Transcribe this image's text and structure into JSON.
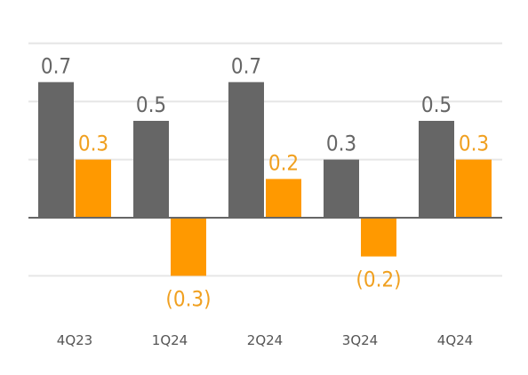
{
  "chart_data": {
    "type": "bar",
    "categories": [
      "4Q23",
      "1Q24",
      "2Q24",
      "3Q24",
      "4Q24"
    ],
    "series": [
      {
        "values": [
          0.7,
          0.5,
          0.7,
          0.3,
          0.5
        ],
        "labels": [
          "0.7",
          "0.5",
          "0.7",
          "0.3",
          "0.5"
        ],
        "color": "#666666",
        "label_color": "#666666"
      },
      {
        "values": [
          0.3,
          -0.3,
          0.2,
          -0.2,
          0.3
        ],
        "labels": [
          "0.3",
          "(0.3)",
          "0.2",
          "(0.2)",
          "0.3"
        ],
        "color": "#FF9900",
        "label_color": "#F0A020"
      }
    ],
    "title": "",
    "xlabel": "",
    "ylabel": "",
    "ylim": [
      -0.4,
      0.8
    ],
    "grid": true,
    "zero_line_color": "#666666",
    "grid_color": "#e6e6e6"
  }
}
